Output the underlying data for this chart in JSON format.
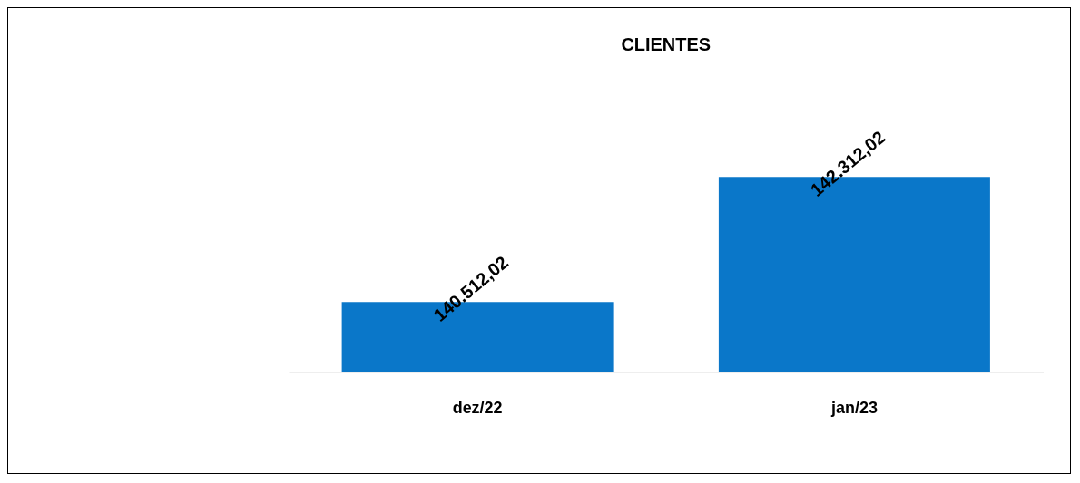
{
  "chart_data": {
    "type": "bar",
    "title": "CLIENTES",
    "categories": [
      "dez/22",
      "jan/23"
    ],
    "values": [
      140512.02,
      142312.02
    ],
    "value_labels": [
      "140.512,02",
      "142.312,02"
    ],
    "color": "#0a77c9",
    "tick_labels": "x",
    "grid": false
  }
}
